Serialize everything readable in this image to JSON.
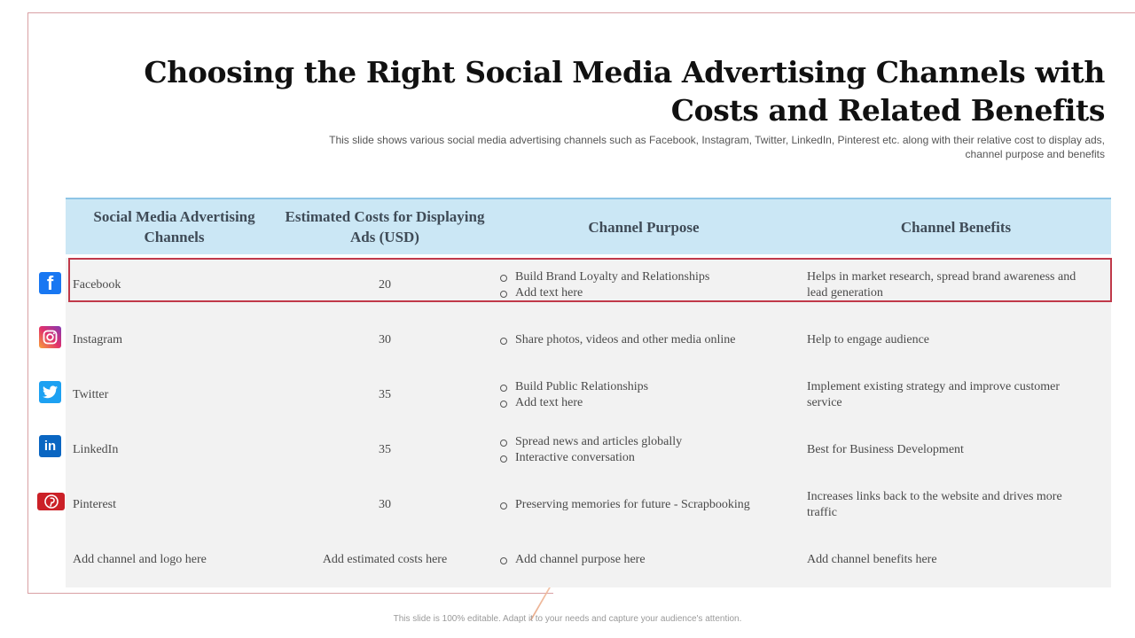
{
  "slide": {
    "title": "Choosing the Right Social Media Advertising Channels with Costs and Related Benefits",
    "subtitle": "This slide shows various social media advertising channels such as Facebook, Instagram, Twitter, LinkedIn, Pinterest etc. along with their relative cost to display ads, channel purpose and benefits",
    "footer": "This slide is 100% editable. Adapt it to your needs and capture your audience's attention."
  },
  "table": {
    "headers": [
      "Social Media Advertising Channels",
      "Estimated Costs for Displaying Ads (USD)",
      "Channel Purpose",
      "Channel Benefits"
    ],
    "rows": [
      {
        "icon": "facebook-icon",
        "channel": "Facebook",
        "cost": "20",
        "purpose": [
          "Build Brand Loyalty and Relationships",
          "Add text here"
        ],
        "benefit": "Helps in market research, spread brand awareness and lead generation"
      },
      {
        "icon": "instagram-icon",
        "channel": "Instagram",
        "cost": "30",
        "purpose": [
          "Share photos, videos and other media online"
        ],
        "benefit": "Help to engage audience"
      },
      {
        "icon": "twitter-icon",
        "channel": "Twitter",
        "cost": "35",
        "purpose": [
          "Build Public Relationships",
          "Add text here"
        ],
        "benefit": "Implement existing strategy and improve customer service"
      },
      {
        "icon": "linkedin-icon",
        "channel": "LinkedIn",
        "cost": "35",
        "purpose": [
          "Spread news and articles globally",
          "Interactive conversation"
        ],
        "benefit": "Best for Business Development"
      },
      {
        "icon": "pinterest-icon",
        "channel": "Pinterest",
        "cost": "30",
        "purpose": [
          "Preserving memories for future - Scrapbooking"
        ],
        "benefit": "Increases links back to the website and drives more traffic"
      },
      {
        "icon": "",
        "channel": "Add channel and logo here",
        "cost": "Add estimated costs here",
        "purpose": [
          "Add channel purpose here"
        ],
        "benefit": "Add channel benefits here"
      }
    ]
  },
  "colors": {
    "header_bg": "#cbe7f5",
    "body_bg": "#f2f2f2",
    "highlight_border": "#c0394a",
    "facebook": "#1877f2",
    "twitter": "#1da1f2",
    "linkedin": "#0a66c2",
    "pinterest": "#cb2027"
  }
}
